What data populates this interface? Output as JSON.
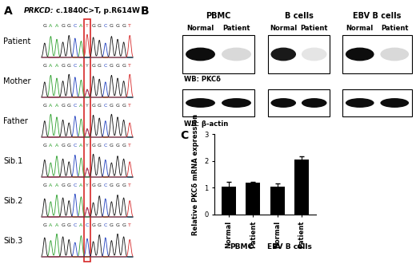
{
  "panel_a": {
    "label": "A",
    "gene": "PRKCD:",
    "variant": "c.1840C>T, p.R614W",
    "highlight_position": 7,
    "rows": [
      {
        "name": "Patient",
        "sequence": "GAAGGCATGGCGGGT"
      },
      {
        "name": "Mother",
        "sequence": "GAAGGCAYGGCGGGT"
      },
      {
        "name": "Father",
        "sequence": "GAAGGCAYGGCGGGT"
      },
      {
        "name": "Sib.1",
        "sequence": "GAAGGCAYGGCGGGT"
      },
      {
        "name": "Sib.2",
        "sequence": "GAAGGCAYGGCGGGT"
      },
      {
        "name": "Sib.3",
        "sequence": "GAAGGCACGGCGGGT"
      }
    ]
  },
  "panel_b": {
    "label": "B",
    "rows": [
      "WB: PKCδ",
      "WB: β-actin"
    ],
    "groups": [
      {
        "name": "PBMC",
        "lanes": [
          "Normal",
          "Patient"
        ],
        "band_intensity": [
          [
            0.95,
            0.15
          ],
          [
            0.95,
            0.95
          ]
        ]
      },
      {
        "name": "B cells",
        "lanes": [
          "Normal",
          "Patient"
        ],
        "band_intensity": [
          [
            0.9,
            0.1
          ],
          [
            0.95,
            0.95
          ]
        ]
      },
      {
        "name": "EBV B cells",
        "lanes": [
          "Normal",
          "Patient"
        ],
        "band_intensity": [
          [
            0.95,
            0.15
          ],
          [
            0.95,
            0.95
          ]
        ]
      }
    ]
  },
  "chart_data": {
    "type": "bar",
    "label": "C",
    "ylabel": "Relative PKCδ mRNA expression",
    "categories": [
      "Normal",
      "Patient",
      "Normal",
      "Patient"
    ],
    "groups": [
      {
        "name": "PBMC",
        "size": 2
      },
      {
        "name": "EBV B cells",
        "size": 2
      }
    ],
    "values": [
      1.05,
      1.2,
      1.05,
      2.05
    ],
    "errors": [
      0.18,
      0.02,
      0.12,
      0.12
    ],
    "color": "#000000",
    "ylim": [
      0,
      3
    ],
    "yticks": [
      0,
      1,
      2,
      3
    ]
  }
}
